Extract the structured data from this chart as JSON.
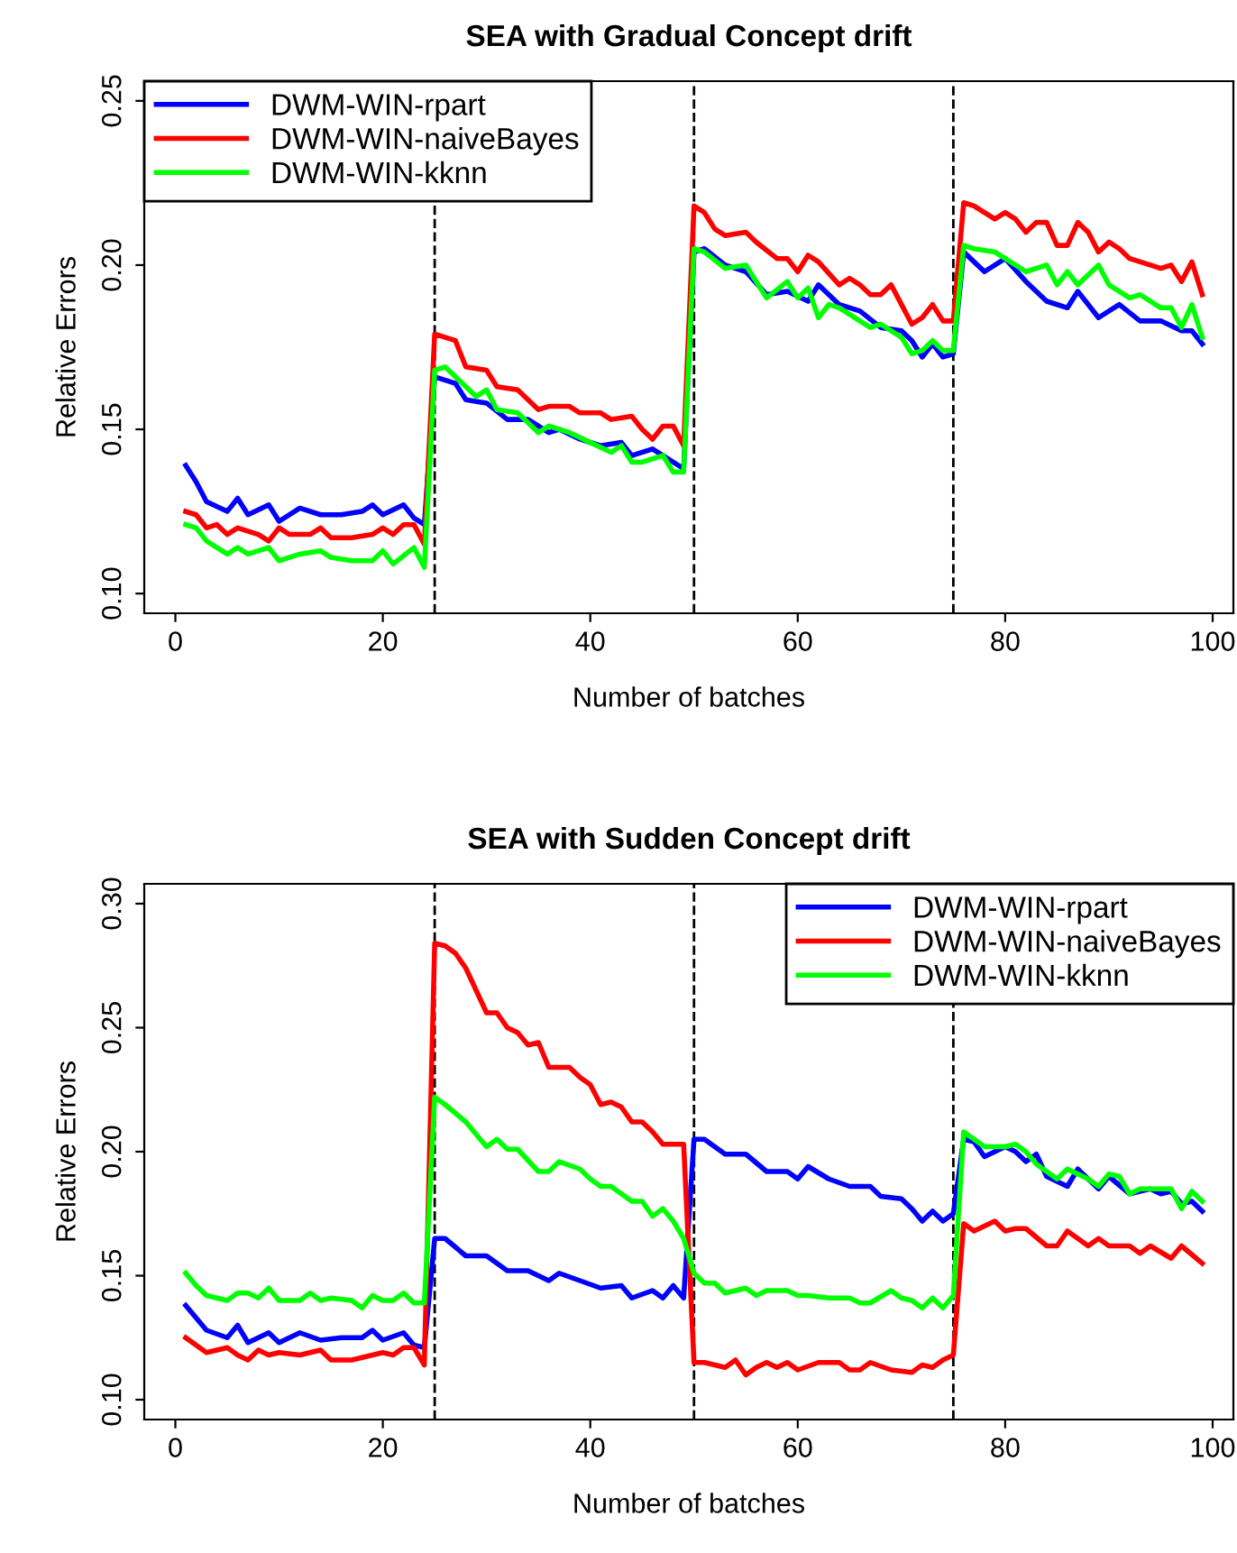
{
  "chart_data": [
    {
      "type": "line",
      "title": "SEA with Gradual Concept drift",
      "xlabel": "Number of batches",
      "ylabel": "Relative Errors",
      "xlim": [
        -3,
        102
      ],
      "xticks": [
        0,
        20,
        40,
        60,
        80,
        100
      ],
      "ylim": [
        0.094,
        0.256
      ],
      "yticks": [
        {
          "value": 0.1,
          "label": "0.10"
        },
        {
          "value": 0.15,
          "label": "0.15"
        },
        {
          "value": 0.2,
          "label": "0.20"
        },
        {
          "value": 0.25,
          "label": "0.25"
        }
      ],
      "legend": "top left",
      "grid": false,
      "line_style": "solid",
      "marker": "none",
      "ref_lines": [
        {
          "axis": "x",
          "value": 25,
          "color": "#000000",
          "line_style": "dashed"
        },
        {
          "axis": "x",
          "value": 50,
          "color": "#000000",
          "line_style": "dashed"
        },
        {
          "axis": "x",
          "value": 75,
          "color": "#000000",
          "line_style": "dashed"
        }
      ],
      "series": [
        {
          "name": "DWM-WIN-rpart",
          "color": "#0000ff",
          "x": [
            1,
            2,
            3,
            5,
            6,
            7,
            9,
            10,
            12,
            14,
            16,
            18,
            19,
            20,
            22,
            23,
            24,
            25,
            27,
            28,
            30,
            32,
            34,
            36,
            37,
            39,
            41,
            43,
            44,
            46,
            47,
            49,
            50,
            51,
            53,
            55,
            57,
            59,
            61,
            62,
            64,
            66,
            68,
            70,
            71,
            72,
            73,
            74,
            75,
            76,
            78,
            80,
            82,
            84,
            86,
            87,
            89,
            91,
            93,
            95,
            97,
            98,
            99
          ],
          "values": [
            0.139,
            0.134,
            0.128,
            0.125,
            0.129,
            0.124,
            0.127,
            0.122,
            0.126,
            0.124,
            0.124,
            0.125,
            0.127,
            0.124,
            0.127,
            0.123,
            0.121,
            0.166,
            0.164,
            0.159,
            0.158,
            0.153,
            0.153,
            0.149,
            0.15,
            0.147,
            0.145,
            0.146,
            0.142,
            0.144,
            0.142,
            0.138,
            0.204,
            0.205,
            0.2,
            0.198,
            0.191,
            0.192,
            0.189,
            0.194,
            0.188,
            0.186,
            0.181,
            0.18,
            0.177,
            0.172,
            0.176,
            0.172,
            0.173,
            0.204,
            0.198,
            0.202,
            0.195,
            0.189,
            0.187,
            0.192,
            0.184,
            0.188,
            0.183,
            0.183,
            0.18,
            0.18,
            0.176
          ]
        },
        {
          "name": "DWM-WIN-naiveBayes",
          "color": "#ff0000",
          "x": [
            1,
            2,
            3,
            4,
            5,
            6,
            8,
            9,
            10,
            11,
            13,
            14,
            15,
            17,
            19,
            20,
            21,
            22,
            23,
            24,
            25,
            27,
            28,
            30,
            31,
            33,
            35,
            36,
            38,
            39,
            41,
            42,
            44,
            45,
            46,
            47,
            48,
            49,
            50,
            51,
            52,
            53,
            55,
            56,
            58,
            59,
            60,
            61,
            62,
            64,
            65,
            66,
            67,
            68,
            69,
            70,
            71,
            72,
            73,
            74,
            75,
            76,
            77,
            79,
            80,
            81,
            82,
            83,
            84,
            85,
            86,
            87,
            88,
            89,
            90,
            91,
            92,
            94,
            95,
            96,
            97,
            98,
            99
          ],
          "values": [
            0.125,
            0.124,
            0.12,
            0.121,
            0.118,
            0.12,
            0.118,
            0.116,
            0.12,
            0.118,
            0.118,
            0.12,
            0.117,
            0.117,
            0.118,
            0.12,
            0.118,
            0.121,
            0.121,
            0.115,
            0.179,
            0.177,
            0.169,
            0.168,
            0.163,
            0.162,
            0.156,
            0.157,
            0.157,
            0.155,
            0.155,
            0.153,
            0.154,
            0.15,
            0.147,
            0.151,
            0.151,
            0.145,
            0.218,
            0.216,
            0.211,
            0.209,
            0.21,
            0.207,
            0.202,
            0.202,
            0.198,
            0.203,
            0.201,
            0.194,
            0.196,
            0.194,
            0.191,
            0.191,
            0.194,
            0.188,
            0.182,
            0.184,
            0.188,
            0.183,
            0.183,
            0.219,
            0.218,
            0.214,
            0.216,
            0.214,
            0.21,
            0.213,
            0.213,
            0.206,
            0.206,
            0.213,
            0.21,
            0.204,
            0.207,
            0.205,
            0.202,
            0.2,
            0.199,
            0.2,
            0.195,
            0.201,
            0.191
          ]
        },
        {
          "name": "DWM-WIN-kknn",
          "color": "#00ff00",
          "x": [
            1,
            2,
            3,
            5,
            6,
            7,
            9,
            10,
            12,
            14,
            15,
            17,
            19,
            20,
            21,
            23,
            24,
            25,
            26,
            27,
            29,
            30,
            31,
            33,
            35,
            36,
            38,
            40,
            42,
            43,
            44,
            45,
            47,
            48,
            49,
            50,
            51,
            53,
            55,
            57,
            59,
            60,
            61,
            62,
            63,
            64,
            66,
            67,
            68,
            70,
            71,
            72,
            73,
            74,
            75,
            76,
            77,
            79,
            80,
            82,
            84,
            85,
            86,
            87,
            89,
            90,
            92,
            93,
            95,
            96,
            97,
            98,
            99
          ],
          "values": [
            0.121,
            0.12,
            0.116,
            0.112,
            0.114,
            0.112,
            0.114,
            0.11,
            0.112,
            0.113,
            0.111,
            0.11,
            0.11,
            0.113,
            0.109,
            0.114,
            0.108,
            0.168,
            0.169,
            0.166,
            0.16,
            0.162,
            0.156,
            0.155,
            0.149,
            0.151,
            0.149,
            0.146,
            0.143,
            0.145,
            0.14,
            0.14,
            0.142,
            0.137,
            0.137,
            0.205,
            0.204,
            0.199,
            0.2,
            0.19,
            0.195,
            0.19,
            0.193,
            0.184,
            0.188,
            0.187,
            0.183,
            0.181,
            0.182,
            0.178,
            0.173,
            0.174,
            0.177,
            0.174,
            0.174,
            0.206,
            0.205,
            0.204,
            0.202,
            0.198,
            0.2,
            0.194,
            0.198,
            0.194,
            0.2,
            0.194,
            0.19,
            0.191,
            0.187,
            0.187,
            0.181,
            0.188,
            0.178
          ]
        }
      ]
    },
    {
      "type": "line",
      "title": "SEA with Sudden Concept drift",
      "xlabel": "Number of batches",
      "ylabel": "Relative Errors",
      "xlim": [
        -3,
        102
      ],
      "xticks": [
        0,
        20,
        40,
        60,
        80,
        100
      ],
      "ylim": [
        0.092,
        0.308
      ],
      "yticks": [
        {
          "value": 0.1,
          "label": "0.10"
        },
        {
          "value": 0.15,
          "label": "0.15"
        },
        {
          "value": 0.2,
          "label": "0.20"
        },
        {
          "value": 0.25,
          "label": "0.25"
        },
        {
          "value": 0.3,
          "label": "0.30"
        }
      ],
      "legend": "top right",
      "grid": false,
      "line_style": "solid",
      "marker": "none",
      "ref_lines": [
        {
          "axis": "x",
          "value": 25,
          "color": "#000000",
          "line_style": "dashed"
        },
        {
          "axis": "x",
          "value": 50,
          "color": "#000000",
          "line_style": "dashed"
        },
        {
          "axis": "x",
          "value": 75,
          "color": "#000000",
          "line_style": "dashed"
        }
      ],
      "series": [
        {
          "name": "DWM-WIN-rpart",
          "color": "#0000ff",
          "x": [
            1,
            3,
            5,
            6,
            7,
            9,
            10,
            12,
            14,
            16,
            18,
            19,
            20,
            22,
            23,
            24,
            25,
            26,
            28,
            30,
            32,
            34,
            36,
            37,
            39,
            41,
            43,
            44,
            46,
            47,
            48,
            49,
            50,
            51,
            53,
            55,
            57,
            59,
            60,
            61,
            63,
            65,
            67,
            68,
            70,
            71,
            72,
            73,
            74,
            75,
            76,
            77,
            78,
            80,
            81,
            82,
            83,
            84,
            86,
            87,
            89,
            90,
            92,
            94,
            95,
            96,
            97,
            98,
            99
          ],
          "values": [
            0.138,
            0.128,
            0.125,
            0.13,
            0.123,
            0.127,
            0.123,
            0.127,
            0.124,
            0.125,
            0.125,
            0.128,
            0.124,
            0.127,
            0.122,
            0.121,
            0.165,
            0.165,
            0.158,
            0.158,
            0.152,
            0.152,
            0.148,
            0.151,
            0.148,
            0.145,
            0.146,
            0.141,
            0.144,
            0.141,
            0.146,
            0.141,
            0.205,
            0.205,
            0.199,
            0.199,
            0.192,
            0.192,
            0.189,
            0.194,
            0.189,
            0.186,
            0.186,
            0.182,
            0.181,
            0.177,
            0.172,
            0.176,
            0.172,
            0.175,
            0.205,
            0.204,
            0.198,
            0.202,
            0.2,
            0.196,
            0.199,
            0.19,
            0.186,
            0.193,
            0.185,
            0.19,
            0.183,
            0.185,
            0.183,
            0.184,
            0.179,
            0.18,
            0.176
          ]
        },
        {
          "name": "DWM-WIN-naiveBayes",
          "color": "#ff0000",
          "x": [
            1,
            3,
            5,
            6,
            7,
            8,
            9,
            10,
            12,
            14,
            15,
            17,
            19,
            20,
            21,
            22,
            23,
            24,
            25,
            26,
            27,
            28,
            29,
            30,
            31,
            32,
            33,
            34,
            35,
            36,
            37,
            38,
            39,
            40,
            41,
            42,
            43,
            44,
            45,
            46,
            47,
            48,
            49,
            50,
            51,
            53,
            54,
            55,
            56,
            57,
            58,
            59,
            60,
            62,
            64,
            65,
            66,
            67,
            69,
            71,
            72,
            73,
            74,
            75,
            76,
            77,
            79,
            80,
            81,
            82,
            84,
            85,
            86,
            87,
            88,
            89,
            90,
            92,
            93,
            94,
            96,
            97,
            99
          ],
          "values": [
            0.125,
            0.119,
            0.121,
            0.118,
            0.116,
            0.12,
            0.118,
            0.119,
            0.118,
            0.12,
            0.116,
            0.116,
            0.118,
            0.119,
            0.118,
            0.121,
            0.121,
            0.114,
            0.284,
            0.283,
            0.28,
            0.274,
            0.265,
            0.256,
            0.256,
            0.25,
            0.248,
            0.243,
            0.244,
            0.234,
            0.234,
            0.234,
            0.23,
            0.227,
            0.219,
            0.22,
            0.218,
            0.212,
            0.212,
            0.208,
            0.203,
            0.203,
            0.203,
            0.115,
            0.115,
            0.113,
            0.116,
            0.11,
            0.113,
            0.115,
            0.113,
            0.115,
            0.112,
            0.115,
            0.115,
            0.112,
            0.112,
            0.115,
            0.112,
            0.111,
            0.114,
            0.113,
            0.116,
            0.118,
            0.171,
            0.168,
            0.172,
            0.168,
            0.169,
            0.169,
            0.162,
            0.162,
            0.168,
            0.165,
            0.162,
            0.165,
            0.162,
            0.162,
            0.159,
            0.162,
            0.157,
            0.162,
            0.155
          ]
        },
        {
          "name": "DWM-WIN-kknn",
          "color": "#00ff00",
          "x": [
            1,
            2,
            3,
            5,
            6,
            7,
            8,
            9,
            10,
            12,
            13,
            14,
            15,
            17,
            18,
            19,
            20,
            21,
            22,
            23,
            24,
            25,
            26,
            28,
            30,
            31,
            32,
            33,
            35,
            36,
            37,
            39,
            40,
            41,
            42,
            44,
            45,
            46,
            47,
            48,
            49,
            50,
            51,
            52,
            53,
            55,
            56,
            57,
            59,
            60,
            61,
            63,
            65,
            66,
            67,
            69,
            70,
            71,
            72,
            73,
            74,
            75,
            76,
            77,
            78,
            80,
            81,
            82,
            83,
            85,
            86,
            88,
            89,
            90,
            91,
            92,
            93,
            94,
            96,
            97,
            98,
            99
          ],
          "values": [
            0.151,
            0.146,
            0.142,
            0.14,
            0.143,
            0.143,
            0.141,
            0.145,
            0.14,
            0.14,
            0.143,
            0.14,
            0.141,
            0.14,
            0.137,
            0.142,
            0.14,
            0.14,
            0.143,
            0.139,
            0.139,
            0.222,
            0.219,
            0.212,
            0.202,
            0.205,
            0.201,
            0.201,
            0.192,
            0.192,
            0.196,
            0.193,
            0.189,
            0.186,
            0.186,
            0.18,
            0.18,
            0.174,
            0.177,
            0.172,
            0.165,
            0.151,
            0.147,
            0.147,
            0.143,
            0.145,
            0.142,
            0.144,
            0.144,
            0.142,
            0.142,
            0.141,
            0.141,
            0.139,
            0.139,
            0.144,
            0.141,
            0.14,
            0.137,
            0.141,
            0.137,
            0.142,
            0.208,
            0.205,
            0.202,
            0.202,
            0.203,
            0.2,
            0.195,
            0.189,
            0.193,
            0.189,
            0.186,
            0.191,
            0.19,
            0.183,
            0.185,
            0.185,
            0.185,
            0.177,
            0.184,
            0.18
          ]
        }
      ]
    }
  ]
}
